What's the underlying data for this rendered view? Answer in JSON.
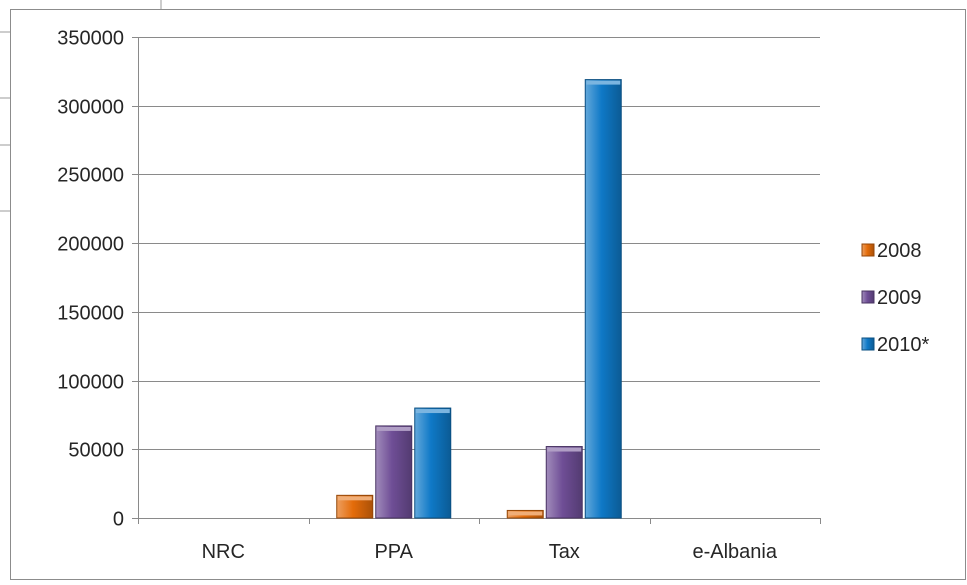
{
  "chart_data": {
    "type": "bar",
    "categories": [
      "NRC",
      "PPA",
      "Tax",
      "e-Albania"
    ],
    "series": [
      {
        "name": "2008",
        "values": [
          0,
          16500,
          5500,
          0
        ],
        "color": "#e46c0a"
      },
      {
        "name": "2009",
        "values": [
          0,
          67000,
          52000,
          0
        ],
        "color": "#6f4e96"
      },
      {
        "name": "2010*",
        "values": [
          0,
          80000,
          319000,
          0
        ],
        "color": "#0f79c7"
      }
    ],
    "ylim": [
      0,
      350000
    ],
    "yticks": [
      0,
      50000,
      100000,
      150000,
      200000,
      250000,
      300000,
      350000
    ],
    "grid": true,
    "legend_position": "right",
    "title": "",
    "xlabel": "",
    "ylabel": ""
  }
}
